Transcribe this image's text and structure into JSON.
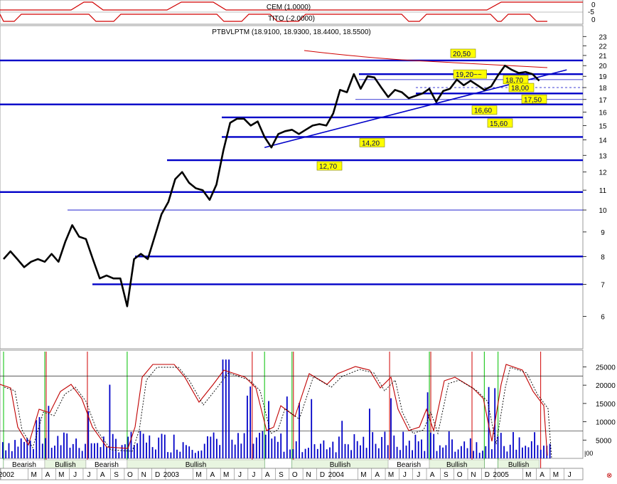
{
  "top_panel": {
    "cem_label": "CEM (1.0000)",
    "tito_label": "TITO (-2.0000)",
    "axis_ticks": [
      "0",
      "-5",
      "0"
    ]
  },
  "price_panel": {
    "title": "PTBVLPTM (18.9100, 18.9300, 18.4400, 18.5500)",
    "y_ticks": [
      "23",
      "22",
      "21",
      "20",
      "19",
      "18",
      "17",
      "16",
      "15",
      "14",
      "13",
      "12",
      "11",
      "10",
      "9",
      "8",
      "7",
      "6"
    ]
  },
  "volume_panel": {
    "y_ticks": [
      "25000",
      "20000",
      "15000",
      "10000",
      "5000"
    ],
    "scale_label": "|00"
  },
  "chart_data": {
    "type": "line",
    "title": "PTBVLPTM (18.9100, 18.9300, 18.4400, 18.5500)",
    "last_bar": {
      "open": 18.91,
      "high": 18.93,
      "low": 18.44,
      "close": 18.55
    },
    "y_scale": "log",
    "ylim": [
      5.5,
      23.5
    ],
    "x_range": [
      "2002-01",
      "2005-06"
    ],
    "price_series": {
      "name": "PTBVLPTM",
      "x": [
        "2002-01",
        "2002-01",
        "2002-02",
        "2002-02",
        "2002-03",
        "2002-03",
        "2002-04",
        "2002-04",
        "2002-05",
        "2002-05",
        "2002-06",
        "2002-06",
        "2002-07",
        "2002-07",
        "2002-08",
        "2002-08",
        "2002-09",
        "2002-09",
        "2002-10",
        "2002-10",
        "2002-11",
        "2002-11",
        "2002-12",
        "2002-12",
        "2003-01",
        "2003-01",
        "2003-02",
        "2003-02",
        "2003-03",
        "2003-03",
        "2003-04",
        "2003-04",
        "2003-05",
        "2003-05",
        "2003-06",
        "2003-06",
        "2003-07",
        "2003-07",
        "2003-08",
        "2003-08",
        "2003-09",
        "2003-09",
        "2003-10",
        "2003-10",
        "2003-11",
        "2003-11",
        "2003-12",
        "2003-12",
        "2004-01",
        "2004-01",
        "2004-02",
        "2004-02",
        "2004-03",
        "2004-03",
        "2004-04",
        "2004-04",
        "2004-05",
        "2004-05",
        "2004-06",
        "2004-06",
        "2004-07",
        "2004-07",
        "2004-08",
        "2004-08",
        "2004-09",
        "2004-09",
        "2004-10",
        "2004-10",
        "2004-11",
        "2004-11",
        "2004-12",
        "2004-12",
        "2005-01",
        "2005-01",
        "2005-02",
        "2005-02",
        "2005-03",
        "2005-03",
        "2005-04"
      ],
      "y": [
        7.9,
        8.2,
        7.9,
        7.6,
        7.8,
        7.9,
        7.8,
        8.1,
        7.8,
        8.6,
        9.3,
        8.8,
        8.7,
        7.9,
        7.2,
        7.3,
        7.2,
        7.2,
        6.3,
        7.9,
        8.1,
        7.9,
        8.8,
        9.8,
        10.4,
        11.6,
        12.0,
        11.4,
        11.1,
        11.0,
        10.5,
        11.3,
        13.3,
        15.2,
        15.5,
        15.5,
        15.0,
        15.3,
        14.2,
        13.5,
        14.4,
        14.6,
        14.7,
        14.4,
        14.7,
        15.0,
        15.1,
        15.0,
        15.9,
        17.8,
        17.6,
        19.2,
        17.9,
        19.0,
        18.9,
        18.0,
        17.2,
        17.8,
        17.6,
        17.1,
        17.3,
        17.5,
        17.9,
        16.8,
        17.7,
        17.9,
        18.7,
        18.2,
        18.6,
        18.2,
        17.8,
        18.1,
        19.1,
        20.0,
        19.6,
        19.3,
        19.4,
        19.2,
        18.6
      ]
    },
    "horizontal_levels": [
      20.5,
      19.2,
      18.7,
      18.0,
      17.5,
      16.6,
      15.6,
      14.2,
      12.7,
      10.9,
      8.0,
      7.0
    ],
    "thin_levels": [
      10.0,
      17.0
    ],
    "trendline": {
      "from": [
        "2003-08",
        13.5
      ],
      "to": [
        "2005-06",
        19.6
      ]
    },
    "annotations": [
      {
        "text": "20,50",
        "value": 20.5
      },
      {
        "text": "19,20~~",
        "value": 19.2
      },
      {
        "text": "18,70",
        "value": 18.7
      },
      {
        "text": "18,00",
        "value": 18.0
      },
      {
        "text": "17,50",
        "value": 17.5
      },
      {
        "text": "16,60",
        "value": 16.6
      },
      {
        "text": "15,60",
        "value": 15.6
      },
      {
        "text": "14,20",
        "value": 14.2
      },
      {
        "text": "12,70",
        "value": 12.7
      }
    ],
    "volume": {
      "ylim": [
        0,
        28000
      ],
      "yticks": [
        25000,
        20000,
        15000,
        10000,
        5000
      ],
      "reference_lines": [
        22500,
        7500
      ]
    },
    "x_tick_labels": [
      "2002",
      "M",
      "A",
      "M",
      "J",
      "J",
      "A",
      "S",
      "O",
      "N",
      "D",
      "2003",
      "M",
      "A",
      "M",
      "J",
      "J",
      "A",
      "S",
      "O",
      "N",
      "D",
      "2004",
      "M",
      "A",
      "M",
      "J",
      "J",
      "A",
      "S",
      "O",
      "N",
      "D",
      "2005",
      "M",
      "A",
      "M",
      "J"
    ],
    "regimes": [
      {
        "label": "Bearish",
        "from": "2002-01",
        "to": "2002-04"
      },
      {
        "label": "Bullish",
        "from": "2002-04",
        "to": "2002-07"
      },
      {
        "label": "Bearish",
        "from": "2002-07",
        "to": "2002-10"
      },
      {
        "label": "Bullish",
        "from": "2002-10",
        "to": "2003-08"
      },
      {
        "label": "Bullish",
        "from": "2003-10",
        "to": "2004-05"
      },
      {
        "label": "Bearish",
        "from": "2004-05",
        "to": "2004-08"
      },
      {
        "label": "Bullish",
        "from": "2004-08",
        "to": "2004-12"
      },
      {
        "label": "Bullish",
        "from": "2005-01",
        "to": "2005-04"
      }
    ]
  }
}
